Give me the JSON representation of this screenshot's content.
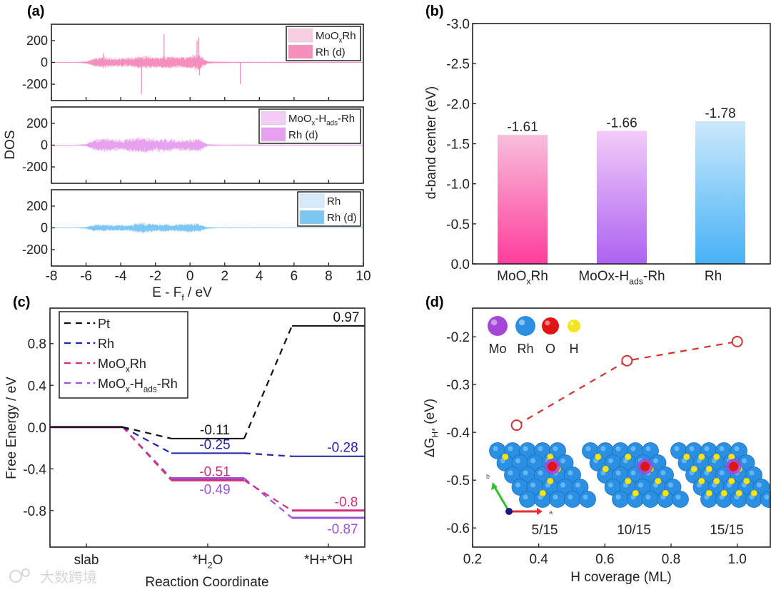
{
  "panel_labels": {
    "a": "(a)",
    "b": "(b)",
    "c": "(c)",
    "d": "(d)"
  },
  "watermark": "大数跨境",
  "chart_data": [
    {
      "id": "a",
      "type": "area",
      "ylabel": "DOS",
      "xlabel": [
        {
          "t": "E - F"
        },
        {
          "t": "f",
          "sub": true
        },
        {
          "t": " / eV"
        }
      ],
      "xlim": [
        -8,
        10
      ],
      "xticks": [
        -8,
        -6,
        -4,
        -2,
        0,
        2,
        4,
        6,
        8,
        10
      ],
      "ylim": [
        -350,
        350
      ],
      "yticks": [
        -200,
        0,
        200
      ],
      "envelope_x": [
        -8,
        -7.5,
        -7,
        -6.5,
        -6,
        -5.5,
        -5,
        -4.5,
        -4,
        -3.5,
        -3,
        -2.5,
        -2,
        -1.5,
        -1,
        -0.5,
        0,
        0.5,
        1,
        1.5,
        2,
        2.5,
        3,
        3.5,
        4,
        4.5,
        5,
        5.5,
        6,
        6.5,
        7,
        7.5,
        8,
        8.5,
        9,
        9.5,
        10
      ],
      "subplots": [
        {
          "legend": [
            [
              {
                "t": "MoO"
              },
              {
                "t": "x",
                "sub": true
              },
              {
                "t": "Rh"
              }
            ],
            [
              {
                "t": "Rh (d)"
              }
            ]
          ],
          "colors": {
            "total": "#f9cde2",
            "d": "#f58dbd"
          },
          "envelope": [
            2,
            2,
            2,
            3,
            10,
            40,
            55,
            45,
            40,
            45,
            55,
            60,
            50,
            60,
            55,
            55,
            60,
            80,
            12,
            6,
            5,
            4,
            4,
            4,
            4,
            4,
            4,
            4,
            4,
            4,
            3,
            3,
            3,
            3,
            3,
            3,
            2
          ],
          "spikes": [
            [
              -1.5,
              260
            ],
            [
              0.4,
              200
            ],
            [
              0.5,
              230
            ],
            [
              -5,
              85
            ],
            [
              -2.8,
              -290
            ],
            [
              2.9,
              -200
            ],
            [
              0.55,
              -120
            ]
          ]
        },
        {
          "legend": [
            [
              {
                "t": "MoO"
              },
              {
                "t": "x",
                "sub": true
              },
              {
                "t": "-H"
              },
              {
                "t": "ads",
                "sub": true
              },
              {
                "t": "-Rh"
              }
            ],
            [
              {
                "t": "Rh (d)"
              }
            ]
          ],
          "colors": {
            "total": "#f3cdf5",
            "d": "#e6a0ee"
          },
          "envelope": [
            2,
            2,
            2,
            3,
            10,
            55,
            65,
            55,
            50,
            60,
            75,
            70,
            55,
            65,
            55,
            50,
            55,
            65,
            8,
            5,
            4,
            4,
            4,
            4,
            5,
            4,
            4,
            4,
            4,
            4,
            4,
            4,
            4,
            4,
            4,
            4,
            3
          ],
          "spikes": []
        },
        {
          "legend": [
            [
              {
                "t": "Rh"
              }
            ],
            [
              {
                "t": "Rh (d)"
              }
            ]
          ],
          "colors": {
            "total": "#d4ecfa",
            "d": "#7cc6f2"
          },
          "envelope": [
            1,
            1,
            1,
            2,
            8,
            35,
            35,
            30,
            30,
            30,
            55,
            50,
            35,
            40,
            30,
            40,
            45,
            40,
            8,
            3,
            2,
            2,
            2,
            2,
            2,
            2,
            2,
            2,
            2,
            2,
            2,
            2,
            2,
            2,
            2,
            2,
            1
          ],
          "spikes": []
        }
      ]
    },
    {
      "id": "b",
      "type": "bar",
      "ylabel": "d-band center (eV)",
      "categories": [
        [
          {
            "t": "MoO"
          },
          {
            "t": "x",
            "sub": true
          },
          {
            "t": "Rh"
          }
        ],
        [
          {
            "t": "MoOx-H"
          },
          {
            "t": "ads",
            "sub": true
          },
          {
            "t": "-Rh"
          }
        ],
        [
          {
            "t": "Rh"
          }
        ]
      ],
      "values": [
        -1.61,
        -1.66,
        -1.78
      ],
      "value_labels": [
        "-1.61",
        "-1.66",
        "-1.78"
      ],
      "gradients": [
        [
          "#f8bedc",
          "#ff3d9c"
        ],
        [
          "#f2cbf8",
          "#ad62f2"
        ],
        [
          "#cbe8fb",
          "#47b2f6"
        ]
      ],
      "ylim": [
        0,
        -3
      ],
      "yticks": [
        0,
        -0.5,
        -1,
        -1.5,
        -2,
        -2.5,
        -3
      ],
      "ytick_labels": [
        "0.0",
        "-0.5",
        "-1.0",
        "-1.5",
        "-2.0",
        "-2.5",
        "-3.0"
      ]
    },
    {
      "id": "c",
      "type": "line",
      "ylabel": "Free Energy / eV",
      "xlabel": "Reaction Coordinate",
      "categories": [
        [
          {
            "t": "slab"
          }
        ],
        [
          {
            "t": "*H"
          },
          {
            "t": "2",
            "sub": true
          },
          {
            "t": "O"
          }
        ],
        [
          {
            "t": "*H+*OH"
          }
        ]
      ],
      "ylim": [
        -1.15,
        1.14
      ],
      "yticks": [
        -0.8,
        -0.4,
        0,
        0.4,
        0.8
      ],
      "ytick_labels": [
        "-0.8",
        "-0.4",
        "0.0",
        "0.4",
        "0.8"
      ],
      "series": [
        {
          "name": [
            {
              "t": "Pt"
            }
          ],
          "color": "#111111",
          "values": [
            0,
            -0.11,
            0.97
          ],
          "labels": [
            "",
            "-0.11",
            "0.97"
          ],
          "label_pos": [
            "",
            "above",
            "above"
          ]
        },
        {
          "name": [
            {
              "t": "Rh"
            }
          ],
          "color": "#2323a8",
          "values": [
            0,
            -0.25,
            -0.28
          ],
          "labels": [
            "",
            "-0.25",
            "-0.28"
          ],
          "label_pos": [
            "",
            "above",
            "above"
          ]
        },
        {
          "name": [
            {
              "t": "MoO"
            },
            {
              "t": "x",
              "sub": true
            },
            {
              "t": "Rh"
            }
          ],
          "color": "#d22f7b",
          "values": [
            0,
            -0.51,
            -0.8
          ],
          "labels": [
            "",
            "-0.51",
            "-0.8"
          ],
          "label_pos": [
            "",
            "above",
            "above"
          ]
        },
        {
          "name": [
            {
              "t": "MoO"
            },
            {
              "t": "x",
              "sub": true
            },
            {
              "t": "-H"
            },
            {
              "t": "ads",
              "sub": true
            },
            {
              "t": "-Rh"
            }
          ],
          "color": "#9d52d8",
          "values": [
            0,
            -0.49,
            -0.87
          ],
          "labels": [
            "",
            "-0.49",
            "-0.87"
          ],
          "label_pos": [
            "",
            "below",
            "below"
          ]
        }
      ],
      "legend_position": "top-left"
    },
    {
      "id": "d",
      "type": "scatter",
      "ylabel": [
        {
          "t": "ΔG"
        },
        {
          "t": "H*",
          "sub": true
        },
        {
          "t": " (eV)"
        }
      ],
      "xlabel": "H coverage (ML)",
      "x": [
        0.333,
        0.667,
        1.0
      ],
      "y": [
        -0.385,
        -0.25,
        -0.21
      ],
      "color": "#d03232",
      "xlim": [
        0.2,
        1.1
      ],
      "ylim": [
        -0.64,
        -0.14
      ],
      "xticks": [
        0.2,
        0.4,
        0.6,
        0.8,
        1.0
      ],
      "xtick_labels": [
        "0.2",
        "0.4",
        "0.6",
        "0.8",
        "1.0"
      ],
      "yticks": [
        -0.2,
        -0.3,
        -0.4,
        -0.5,
        -0.6
      ],
      "ytick_labels": [
        "-0.2",
        "-0.3",
        "-0.4",
        "-0.5",
        "-0.6"
      ],
      "atom_legend": [
        {
          "label": "Mo",
          "color": "#a646d6"
        },
        {
          "label": "Rh",
          "color": "#2b8fe2"
        },
        {
          "label": "O",
          "color": "#e01414"
        },
        {
          "label": "H",
          "color": "#f2e41e"
        }
      ],
      "structures": [
        {
          "label": "5/15",
          "h_count": 5
        },
        {
          "label": "10/15",
          "h_count": 10
        },
        {
          "label": "15/15",
          "h_count": 15
        }
      ],
      "axis_labels": {
        "a": "a",
        "b": "b"
      }
    }
  ]
}
